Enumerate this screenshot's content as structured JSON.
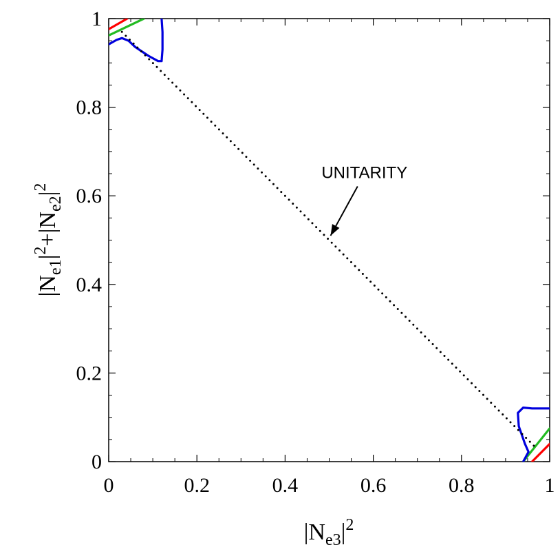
{
  "chart_data": {
    "type": "line",
    "title": "",
    "xlabel": {
      "base": "|N",
      "sub": "e3",
      "close": "|",
      "sup": "2"
    },
    "ylabel": {
      "parts": [
        {
          "base": "|N",
          "sub": "e1",
          "close": "|",
          "sup": "2"
        },
        {
          "plus": "+"
        },
        {
          "base": "|N",
          "sub": "e2",
          "close": "|",
          "sup": "2"
        }
      ]
    },
    "xlim": [
      0,
      1
    ],
    "ylim": [
      0,
      1
    ],
    "xticks": [
      0,
      0.2,
      0.4,
      0.6,
      0.8,
      1
    ],
    "yticks": [
      0,
      0.2,
      0.4,
      0.6,
      0.8,
      1
    ],
    "xtick_labels": [
      "0",
      "0.2",
      "0.4",
      "0.6",
      "0.8",
      "1"
    ],
    "ytick_labels": [
      "0",
      "0.2",
      "0.4",
      "0.6",
      "0.8",
      "1"
    ],
    "grid": false,
    "colors": {
      "red": "#ff0000",
      "green": "#22bb22",
      "blue": "#0000dd",
      "dotted": "#000000"
    },
    "series": [
      {
        "color": "red",
        "x": [
          0.0,
          0.042
        ],
        "y": [
          0.976,
          1.0
        ]
      },
      {
        "color": "green",
        "x": [
          0.0,
          0.08
        ],
        "y": [
          0.962,
          1.0
        ]
      },
      {
        "color": "blue",
        "x": [
          0.0,
          0.018,
          0.03,
          0.045,
          0.06,
          0.09,
          0.112,
          0.12,
          0.122,
          0.122,
          0.12
        ],
        "y": [
          0.942,
          0.952,
          0.956,
          0.95,
          0.936,
          0.916,
          0.904,
          0.904,
          0.93,
          0.97,
          1.0
        ]
      },
      {
        "color": "red",
        "x": [
          0.96,
          1.0
        ],
        "y": [
          0.0,
          0.04
        ]
      },
      {
        "color": "green",
        "x": [
          0.94,
          1.0
        ],
        "y": [
          0.0,
          0.075
        ]
      },
      {
        "color": "blue",
        "x": [
          0.94,
          0.952,
          0.944,
          0.93,
          0.928,
          0.94,
          0.96,
          0.985,
          1.0
        ],
        "y": [
          0.0,
          0.022,
          0.04,
          0.08,
          0.11,
          0.122,
          0.12,
          0.12,
          0.12
        ]
      },
      {
        "color": "dotted",
        "style": "dotted",
        "x": [
          0.03,
          0.97
        ],
        "y": [
          0.97,
          0.03
        ]
      }
    ],
    "annotations": [
      {
        "text": "UNITARITY",
        "x": 0.58,
        "y": 0.64,
        "arrow_to": [
          0.5,
          0.51
        ]
      }
    ]
  }
}
